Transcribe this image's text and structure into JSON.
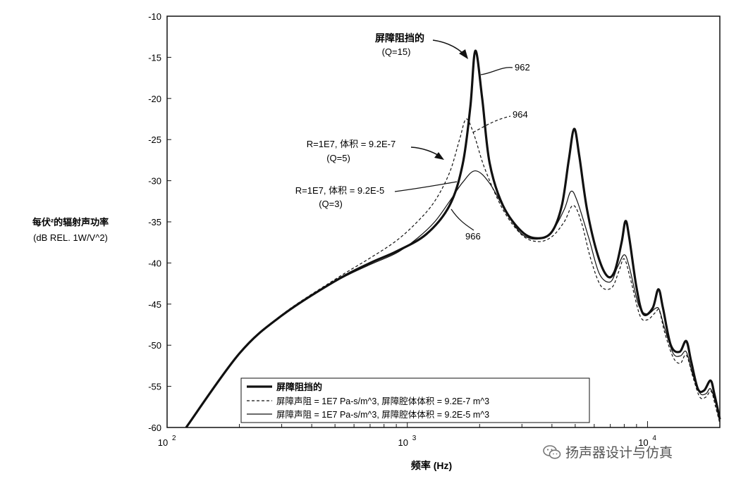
{
  "chart_data": {
    "type": "line",
    "title": "",
    "xlabel": "频率 (Hz)",
    "ylabel_line1": "每伏²的辐射声功率",
    "ylabel_line2": "(dB REL. 1W/V^2)",
    "x_scale": "log",
    "xlim": [
      100,
      20000
    ],
    "ylim": [
      -60,
      -10
    ],
    "y_ticks": [
      -10,
      -15,
      -20,
      -25,
      -30,
      -35,
      -40,
      -45,
      -50,
      -55,
      -60
    ],
    "y_tick_labels": [
      "-10",
      "-15",
      "-20",
      "-25",
      "-30",
      "-35",
      "-40",
      "-45",
      "-50",
      "-55",
      "-60"
    ],
    "x_tick_labels": [
      {
        "value": 100,
        "base": "10",
        "exp": "2"
      },
      {
        "value": 1000,
        "base": "10",
        "exp": "3"
      },
      {
        "value": 10000,
        "base": "10",
        "exp": "4"
      }
    ],
    "grid": false,
    "legend_position": "bottom-center",
    "series": [
      {
        "name": "屏障阻挡的",
        "style": "thick",
        "points": [
          [
            120,
            -60
          ],
          [
            200,
            -51
          ],
          [
            300,
            -46.4
          ],
          [
            500,
            -42.2
          ],
          [
            700,
            -40
          ],
          [
            900,
            -38.6
          ],
          [
            1200,
            -36.5
          ],
          [
            1500,
            -33
          ],
          [
            1700,
            -28
          ],
          [
            1830,
            -21
          ],
          [
            1920,
            -14.2
          ],
          [
            2050,
            -20
          ],
          [
            2200,
            -27.8
          ],
          [
            2500,
            -33
          ],
          [
            3000,
            -36.2
          ],
          [
            3500,
            -37
          ],
          [
            4000,
            -36.2
          ],
          [
            4400,
            -33
          ],
          [
            4700,
            -27.5
          ],
          [
            4950,
            -23.7
          ],
          [
            5200,
            -27
          ],
          [
            5600,
            -33.5
          ],
          [
            6200,
            -39
          ],
          [
            6800,
            -41.6
          ],
          [
            7300,
            -41
          ],
          [
            7800,
            -37.5
          ],
          [
            8100,
            -34.9
          ],
          [
            8400,
            -37
          ],
          [
            9000,
            -43
          ],
          [
            9600,
            -46.2
          ],
          [
            10500,
            -45.5
          ],
          [
            11100,
            -43.2
          ],
          [
            11600,
            -45.5
          ],
          [
            12500,
            -50
          ],
          [
            13600,
            -50.8
          ],
          [
            14500,
            -49.5
          ],
          [
            15200,
            -52
          ],
          [
            16200,
            -55.3
          ],
          [
            17200,
            -55.5
          ],
          [
            18300,
            -54.3
          ],
          [
            19000,
            -56
          ],
          [
            20000,
            -59
          ]
        ]
      },
      {
        "name": "屏障声阻 = 1E7 Pa-s/m^3, 屏障腔体体积 = 9.2E-7 m^3",
        "style": "dashed",
        "points": [
          [
            120,
            -60
          ],
          [
            200,
            -51
          ],
          [
            300,
            -46.3
          ],
          [
            500,
            -42
          ],
          [
            700,
            -39.4
          ],
          [
            900,
            -37.3
          ],
          [
            1100,
            -35
          ],
          [
            1300,
            -32.5
          ],
          [
            1500,
            -29
          ],
          [
            1650,
            -25
          ],
          [
            1760,
            -22.5
          ],
          [
            1900,
            -24.5
          ],
          [
            2100,
            -28.5
          ],
          [
            2500,
            -33.5
          ],
          [
            3000,
            -36.6
          ],
          [
            3500,
            -37.4
          ],
          [
            4000,
            -36.8
          ],
          [
            4500,
            -35
          ],
          [
            4900,
            -33
          ],
          [
            5300,
            -35
          ],
          [
            5800,
            -39.5
          ],
          [
            6400,
            -42.8
          ],
          [
            7100,
            -43
          ],
          [
            7600,
            -41
          ],
          [
            8000,
            -39.5
          ],
          [
            8500,
            -42
          ],
          [
            9300,
            -46.4
          ],
          [
            10000,
            -46.9
          ],
          [
            10800,
            -46
          ],
          [
            11200,
            -45.8
          ],
          [
            11800,
            -48.5
          ],
          [
            12800,
            -51.5
          ],
          [
            13700,
            -52.2
          ],
          [
            14500,
            -51.2
          ],
          [
            15500,
            -54
          ],
          [
            16500,
            -56.3
          ],
          [
            17500,
            -56.3
          ],
          [
            18400,
            -55.6
          ],
          [
            19200,
            -57.5
          ],
          [
            20000,
            -59.5
          ]
        ]
      },
      {
        "name": "屏障声阻 = 1E7 Pa-s/m^3, 屏障腔体体积 = 9.2E-5 m^3",
        "style": "thin",
        "points": [
          [
            120,
            -60
          ],
          [
            200,
            -51
          ],
          [
            300,
            -46.4
          ],
          [
            500,
            -42.3
          ],
          [
            700,
            -40.2
          ],
          [
            900,
            -38.8
          ],
          [
            1100,
            -37
          ],
          [
            1300,
            -35
          ],
          [
            1500,
            -32.5
          ],
          [
            1700,
            -30.2
          ],
          [
            1920,
            -28.8
          ],
          [
            2200,
            -30.3
          ],
          [
            2600,
            -34
          ],
          [
            3000,
            -36.5
          ],
          [
            3500,
            -37.1
          ],
          [
            4000,
            -36.2
          ],
          [
            4500,
            -33.5
          ],
          [
            4800,
            -31.3
          ],
          [
            5100,
            -32.5
          ],
          [
            5700,
            -37
          ],
          [
            6300,
            -41.3
          ],
          [
            7000,
            -42.3
          ],
          [
            7500,
            -40.5
          ],
          [
            8000,
            -39
          ],
          [
            8400,
            -40.5
          ],
          [
            9200,
            -45.2
          ],
          [
            10000,
            -46.2
          ],
          [
            10800,
            -45.5
          ],
          [
            11200,
            -45.7
          ],
          [
            11800,
            -48
          ],
          [
            12800,
            -51
          ],
          [
            13700,
            -51.3
          ],
          [
            14500,
            -50.8
          ],
          [
            15400,
            -53.5
          ],
          [
            16500,
            -55.8
          ],
          [
            17500,
            -55.9
          ],
          [
            18300,
            -55.3
          ],
          [
            19200,
            -57
          ],
          [
            20000,
            -59
          ]
        ]
      }
    ],
    "annotations": [
      {
        "id": "962",
        "text": "962"
      },
      {
        "id": "964",
        "text": "964"
      },
      {
        "id": "966",
        "text": "966"
      },
      {
        "id": "barrier",
        "line1": "屏障阻挡的",
        "line2": "(Q=15)"
      },
      {
        "id": "q5",
        "line1": "R=1E7, 体积 = 9.2E-7",
        "line2": "(Q=5)"
      },
      {
        "id": "q3",
        "line1": "R=1E7, 体积 = 9.2E-5",
        "line2": "(Q=3)"
      }
    ]
  },
  "watermark": {
    "text": "扬声器设计与仿真",
    "icon": "wechat-icon"
  }
}
